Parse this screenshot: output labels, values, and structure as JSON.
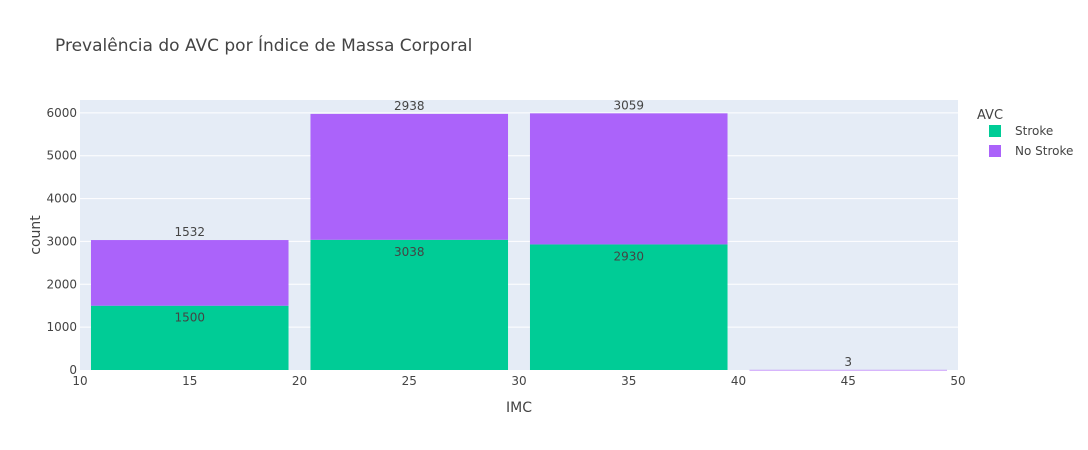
{
  "chart_data": {
    "type": "bar",
    "title": "Prevalência do AVC por Índice de Massa Corporal",
    "xlabel": "IMC",
    "ylabel": "count",
    "xlim": [
      10,
      50
    ],
    "ylim": [
      0,
      6300
    ],
    "x_ticks": [
      10,
      15,
      20,
      25,
      30,
      35,
      40,
      45,
      50
    ],
    "y_ticks": [
      0,
      1000,
      2000,
      3000,
      4000,
      5000,
      6000
    ],
    "grid": true,
    "barmode": "stack",
    "bins": [
      {
        "start": 10,
        "end": 20
      },
      {
        "start": 20,
        "end": 30
      },
      {
        "start": 30,
        "end": 40
      },
      {
        "start": 40,
        "end": 50
      }
    ],
    "legend_title": "AVC",
    "legend_position": "top-right",
    "series": [
      {
        "name": "Stroke",
        "color": "#00cc96",
        "values": [
          1500,
          3038,
          2930,
          0
        ],
        "labels": [
          "1500",
          "3038",
          "2930",
          ""
        ]
      },
      {
        "name": "No Stroke",
        "color": "#ab63fa",
        "values": [
          1532,
          2938,
          3059,
          3
        ],
        "labels": [
          "1532",
          "2938",
          "3059",
          "3"
        ]
      }
    ]
  },
  "style": {
    "plot_bg": "#e5ecf6",
    "grid_color": "#ffffff",
    "text_color": "#444444"
  }
}
